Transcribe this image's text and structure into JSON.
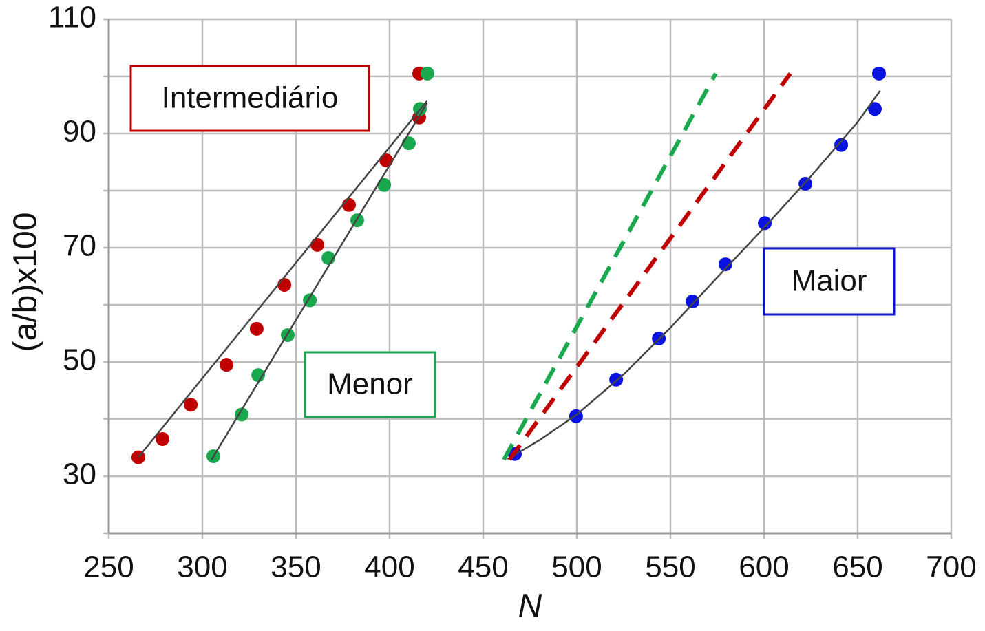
{
  "chart_data": {
    "type": "scatter",
    "xlabel": "N",
    "ylabel": "(a/b)x100",
    "xlim": [
      250,
      700
    ],
    "ylim": [
      20,
      110
    ],
    "xticks": [
      250,
      300,
      350,
      400,
      450,
      500,
      550,
      600,
      650,
      700
    ],
    "yticks": [
      30,
      50,
      70,
      90,
      110
    ],
    "yminorticks": [
      20,
      40,
      60,
      80,
      100
    ],
    "grid": true,
    "series": [
      {
        "name": "Intermediário",
        "color": "#c00000",
        "x": [
          265.8,
          278.7,
          293.8,
          312.9,
          329.0,
          343.8,
          361.4,
          378.3,
          398.2,
          415.8,
          415.8
        ],
        "values": [
          33.3,
          36.5,
          42.5,
          49.5,
          55.8,
          63.5,
          70.5,
          77.5,
          85.3,
          92.8,
          100.5
        ]
      },
      {
        "name": "Menor",
        "color": "#1aa84f",
        "x": [
          305.9,
          321.0,
          329.8,
          345.6,
          357.4,
          367.3,
          382.7,
          397.1,
          410.3,
          416.2,
          420.2
        ],
        "values": [
          33.5,
          40.8,
          47.7,
          54.7,
          60.8,
          68.2,
          74.8,
          81.0,
          88.3,
          94.3,
          100.5
        ]
      },
      {
        "name": "Maior",
        "color": "#0a14e0",
        "x": [
          466.9,
          499.6,
          521.0,
          543.8,
          561.8,
          579.4,
          600.4,
          622.1,
          641.2,
          659.2,
          661.4
        ],
        "values": [
          33.9,
          40.5,
          46.9,
          54.1,
          60.6,
          67.1,
          74.3,
          81.2,
          88.0,
          94.3,
          100.5
        ]
      }
    ],
    "fits": [
      {
        "color": "#444444",
        "dashed": false,
        "x": [
          265.8,
          420
        ],
        "y": [
          33.3,
          95.7
        ]
      },
      {
        "color": "#444444",
        "dashed": false,
        "x": [
          304.9,
          420
        ],
        "y": [
          32.9,
          95.3
        ]
      },
      {
        "color": "#444444",
        "dashed": false,
        "x": [
          463,
          480,
          500,
          525,
          550,
          575,
          600,
          625,
          650,
          662
        ],
        "y": [
          33,
          36.3,
          40.8,
          47.8,
          56,
          64.8,
          73.5,
          82.5,
          92,
          97.5
        ]
      },
      {
        "color": "#1aa84f",
        "dashed": true,
        "x": [
          461.0,
          574.2
        ],
        "y": [
          32.9,
          100.5
        ]
      },
      {
        "color": "#c00000",
        "dashed": true,
        "x": [
          464.0,
          614.0
        ],
        "y": [
          32.9,
          100.5
        ]
      }
    ]
  }
}
